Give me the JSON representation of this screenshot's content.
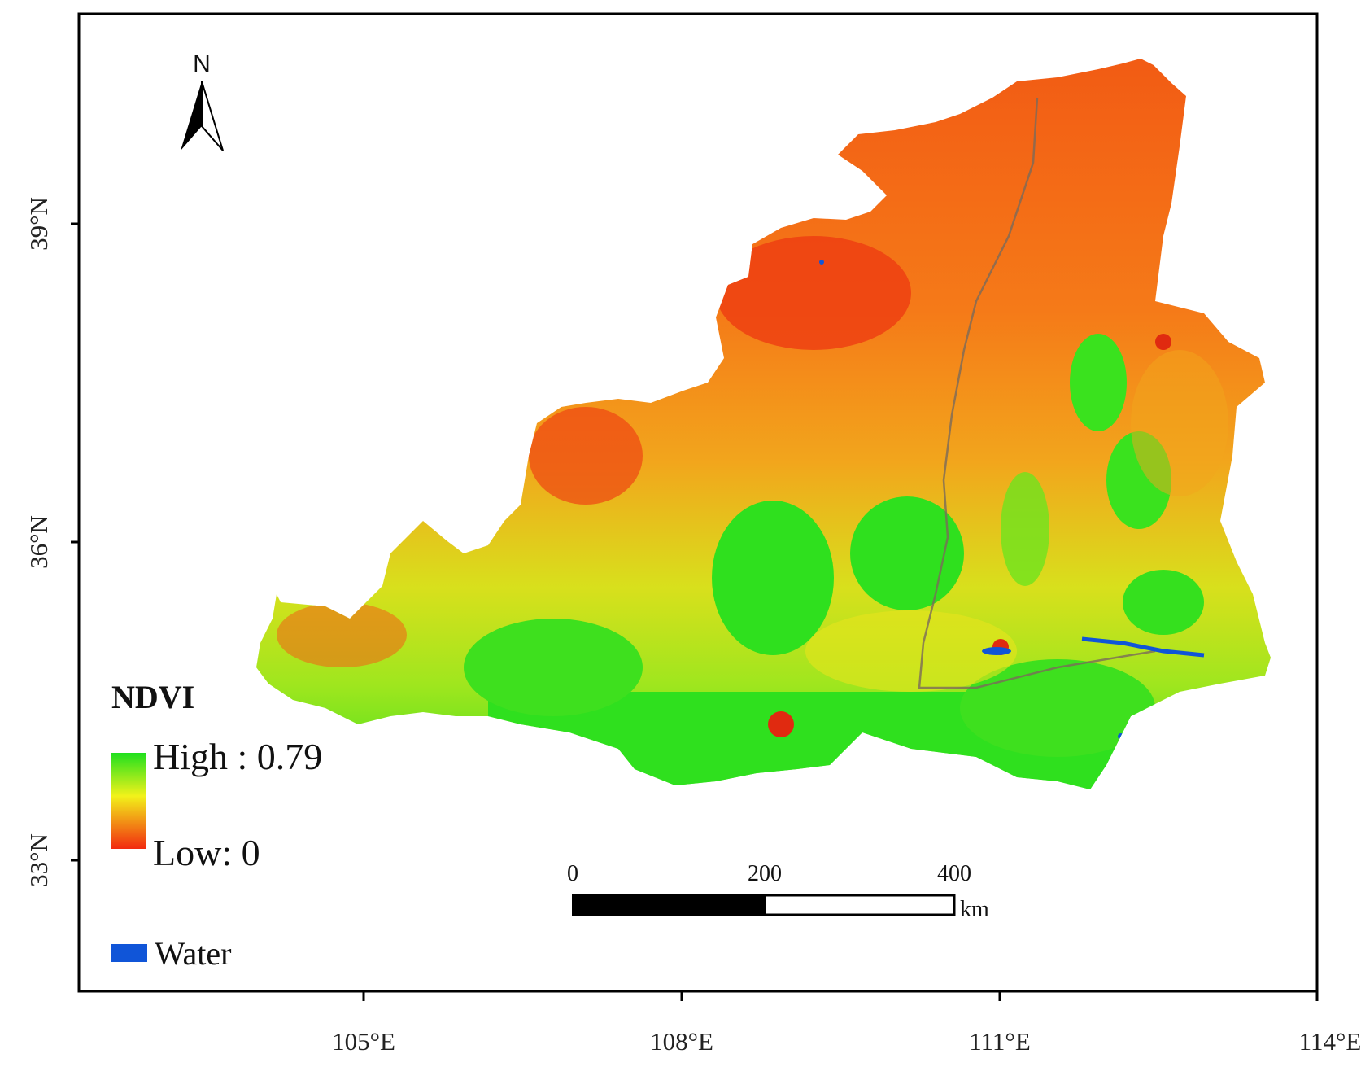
{
  "map": {
    "type": "raster-map",
    "variable": "NDVI",
    "x_axis": {
      "ticks": [
        "105°E",
        "108°E",
        "111°E",
        "114°E"
      ],
      "range_deg": [
        102.3,
        114.0
      ]
    },
    "y_axis": {
      "ticks": [
        "33°N",
        "36°N",
        "39°N"
      ],
      "range_deg": [
        32.0,
        41.0
      ]
    },
    "north_arrow": {
      "label": "N",
      "icon": "north-arrow-icon"
    },
    "legend": {
      "title": "NDVI",
      "high_label": "High : 0.79",
      "low_label": "Low: 0",
      "high_value": 0.79,
      "low_value": 0,
      "water_label": "Water",
      "colors": {
        "high": "#1ee01e",
        "mid": "#f2f21a",
        "low": "#f22a10",
        "water": "#1055d8"
      }
    },
    "scale_bar": {
      "ticks": [
        "0",
        "200",
        "400"
      ],
      "unit": "km"
    }
  }
}
